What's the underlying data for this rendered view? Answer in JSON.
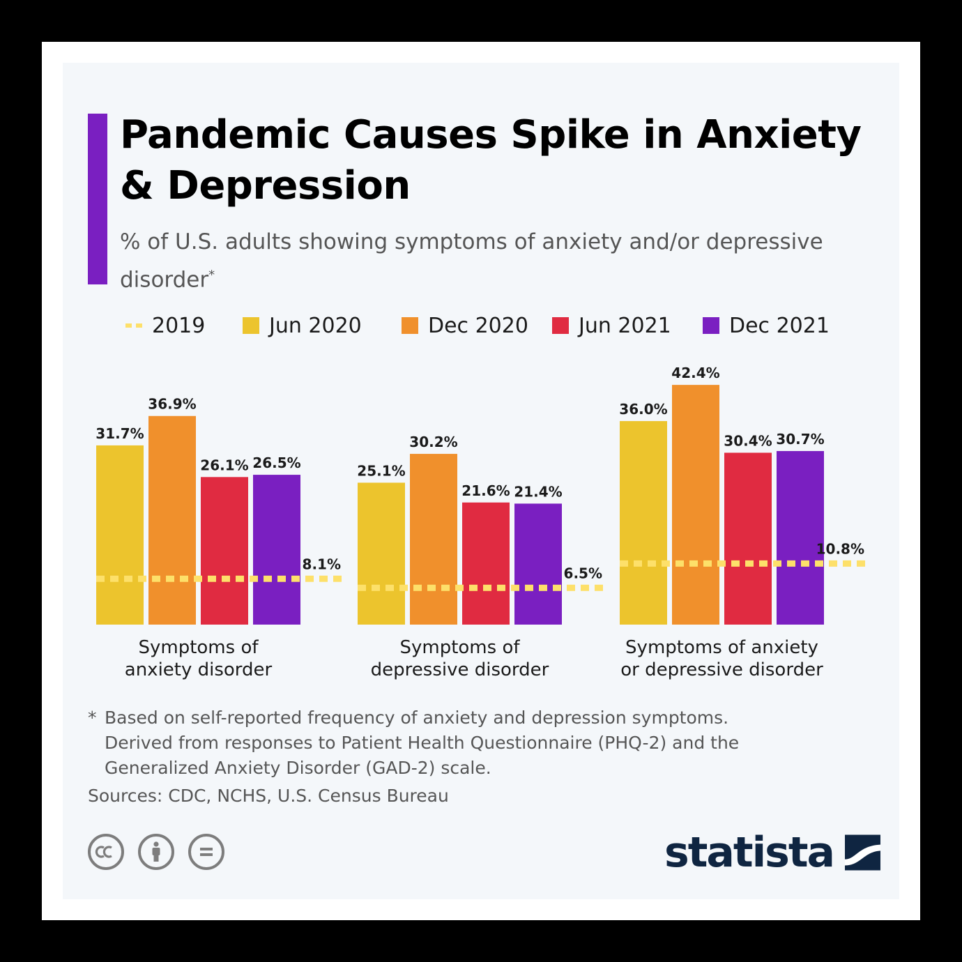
{
  "title": "Pandemic Causes Spike in Anxiety & Depression",
  "subtitle": "% of U.S. adults showing symptoms of anxiety and/or depressive disorder",
  "subtitle_mark": "*",
  "legend": [
    {
      "label": "2019",
      "color": "#fde06a",
      "style": "dashed"
    },
    {
      "label": "Jun 2020",
      "color": "#ecc42d",
      "style": "solid"
    },
    {
      "label": "Dec 2020",
      "color": "#f0902c",
      "style": "solid"
    },
    {
      "label": "Jun 2021",
      "color": "#e02b41",
      "style": "solid"
    },
    {
      "label": "Dec 2021",
      "color": "#7a1fc1",
      "style": "solid"
    }
  ],
  "chart_data": {
    "type": "bar",
    "categories": [
      [
        "Symptoms of",
        "anxiety disorder"
      ],
      [
        "Symptoms of",
        "depressive disorder"
      ],
      [
        "Symptoms of anxiety",
        "or depressive disorder"
      ]
    ],
    "series": [
      {
        "name": "Jun 2020",
        "color": "#ecc42d",
        "values": [
          31.7,
          25.1,
          36.0
        ],
        "labels": [
          "31.7%",
          "25.1%",
          "36.0%"
        ]
      },
      {
        "name": "Dec 2020",
        "color": "#f0902c",
        "values": [
          36.9,
          30.2,
          42.4
        ],
        "labels": [
          "36.9%",
          "30.2%",
          "42.4%"
        ]
      },
      {
        "name": "Jun 2021",
        "color": "#e02b41",
        "values": [
          26.1,
          21.6,
          30.4
        ],
        "labels": [
          "26.1%",
          "21.6%",
          "30.4%"
        ]
      },
      {
        "name": "Dec 2021",
        "color": "#7a1fc1",
        "values": [
          26.5,
          21.4,
          30.7
        ],
        "labels": [
          "26.5%",
          "21.4%",
          "30.7%"
        ]
      }
    ],
    "baseline": {
      "name": "2019",
      "color": "#fde06a",
      "style": "dashed",
      "values": [
        8.1,
        6.5,
        10.8
      ],
      "labels": [
        "8.1%",
        "6.5%",
        "10.8%"
      ]
    },
    "unit": "%",
    "ylim": [
      0,
      42.4
    ],
    "grid": false,
    "legend_position": "top"
  },
  "footnote": {
    "mark": "*",
    "lines": [
      "Based on self-reported frequency of anxiety and depression symptoms.",
      "Derived from responses to Patient Health Questionnaire (PHQ-2) and the",
      "Generalized Anxiety Disorder (GAD-2) scale."
    ]
  },
  "sources": "Sources: CDC, NCHS, U.S. Census Bureau",
  "license_icons": [
    "creative-commons-icon",
    "attribution-icon",
    "no-derivatives-icon"
  ],
  "logo": {
    "text": "statista",
    "color": "#0f2541"
  }
}
